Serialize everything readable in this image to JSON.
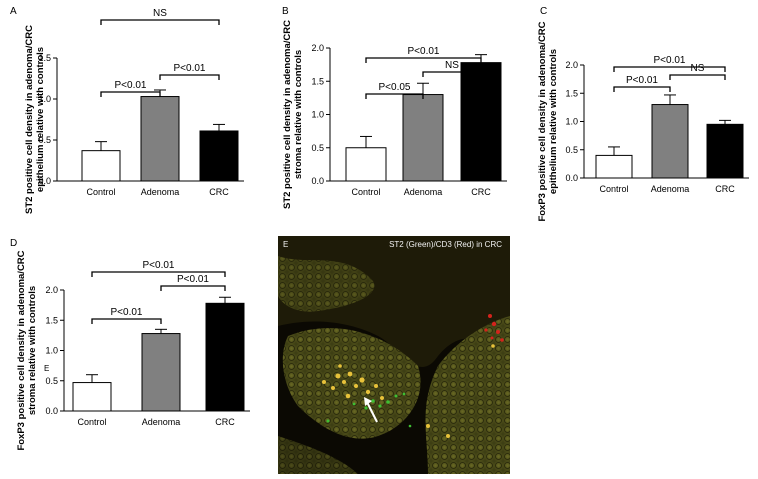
{
  "panel_letters": {
    "a": "A",
    "b": "B",
    "c": "C",
    "d": "D",
    "e": "E"
  },
  "extra_label": "E",
  "image_panel": {
    "caption": "ST2 (Green)/CD3 (Red) in CRC",
    "letter": "E",
    "description_icons": [
      "white-arrow-icon"
    ]
  },
  "colors": {
    "control": "#ffffff",
    "adenoma": "#808080",
    "crc": "#000000"
  },
  "chart_data": [
    {
      "id": "A",
      "type": "bar",
      "categories": [
        "Control",
        "Adenoma",
        "CRC"
      ],
      "values": [
        0.37,
        1.03,
        0.61
      ],
      "errors": [
        0.11,
        0.08,
        0.08
      ],
      "colors": [
        "#ffffff",
        "#808080",
        "#000000"
      ],
      "ylabel": [
        "ST2 positive cell density in adenoma/CRC",
        "epithelium relative with controls"
      ],
      "ylim": [
        0,
        1.5
      ],
      "yticks": [
        "0.0",
        "0.5",
        "1.0",
        "1.5"
      ],
      "ytick_values": [
        0,
        0.5,
        1.0,
        1.5
      ],
      "annotations": [
        {
          "text": "P<0.01",
          "from": 0,
          "to": 1
        },
        {
          "text": "P<0.01",
          "from": 1,
          "to": 2
        },
        {
          "text": "NS",
          "from": 0,
          "to": 2
        }
      ],
      "grid": false
    },
    {
      "id": "B",
      "type": "bar",
      "categories": [
        "Control",
        "Adenoma",
        "CRC"
      ],
      "values": [
        0.5,
        1.3,
        1.78
      ],
      "errors": [
        0.17,
        0.17,
        0.12
      ],
      "colors": [
        "#ffffff",
        "#808080",
        "#000000"
      ],
      "ylabel": [
        "ST2 positive cell density in adenoma/CRC",
        "stroma relative with controls"
      ],
      "ylim": [
        0,
        2.0
      ],
      "yticks": [
        "0.0",
        "0.5",
        "1.0",
        "1.5",
        "2.0"
      ],
      "ytick_values": [
        0,
        0.5,
        1.0,
        1.5,
        2.0
      ],
      "annotations": [
        {
          "text": "P<0.05",
          "from": 0,
          "to": 1
        },
        {
          "text": "NS",
          "from": 1,
          "to": 2
        },
        {
          "text": "P<0.01",
          "from": 0,
          "to": 2
        }
      ],
      "grid": false
    },
    {
      "id": "C",
      "type": "bar",
      "categories": [
        "Control",
        "Adenoma",
        "CRC"
      ],
      "values": [
        0.4,
        1.3,
        0.95
      ],
      "errors": [
        0.15,
        0.17,
        0.07
      ],
      "colors": [
        "#ffffff",
        "#808080",
        "#000000"
      ],
      "ylabel": [
        "FoxP3 positive cell density in adenoma/CRC",
        "epithelium relative with controls"
      ],
      "ylim": [
        0,
        2.0
      ],
      "yticks": [
        "0.0",
        "0.5",
        "1.0",
        "1.5",
        "2.0"
      ],
      "ytick_values": [
        0,
        0.5,
        1.0,
        1.5,
        2.0
      ],
      "annotations": [
        {
          "text": "P<0.01",
          "from": 0,
          "to": 1
        },
        {
          "text": "NS",
          "from": 1,
          "to": 2
        },
        {
          "text": "P<0.01",
          "from": 0,
          "to": 2
        }
      ],
      "grid": false
    },
    {
      "id": "D",
      "type": "bar",
      "categories": [
        "Control",
        "Adenoma",
        "CRC"
      ],
      "values": [
        0.47,
        1.28,
        1.78
      ],
      "errors": [
        0.13,
        0.07,
        0.1
      ],
      "colors": [
        "#ffffff",
        "#808080",
        "#000000"
      ],
      "ylabel": [
        "FoxP3 positive cell density in adenoma/CRC",
        "stroma relative with controls"
      ],
      "ylim": [
        0,
        2.0
      ],
      "yticks": [
        "0.0",
        "0.5",
        "1.0",
        "1.5",
        "2.0"
      ],
      "ytick_values": [
        0,
        0.5,
        1.0,
        1.5,
        2.0
      ],
      "annotations": [
        {
          "text": "P<0.01",
          "from": 0,
          "to": 1
        },
        {
          "text": "P<0.01",
          "from": 1,
          "to": 2
        },
        {
          "text": "P<0.01",
          "from": 0,
          "to": 2
        }
      ],
      "grid": false
    }
  ]
}
